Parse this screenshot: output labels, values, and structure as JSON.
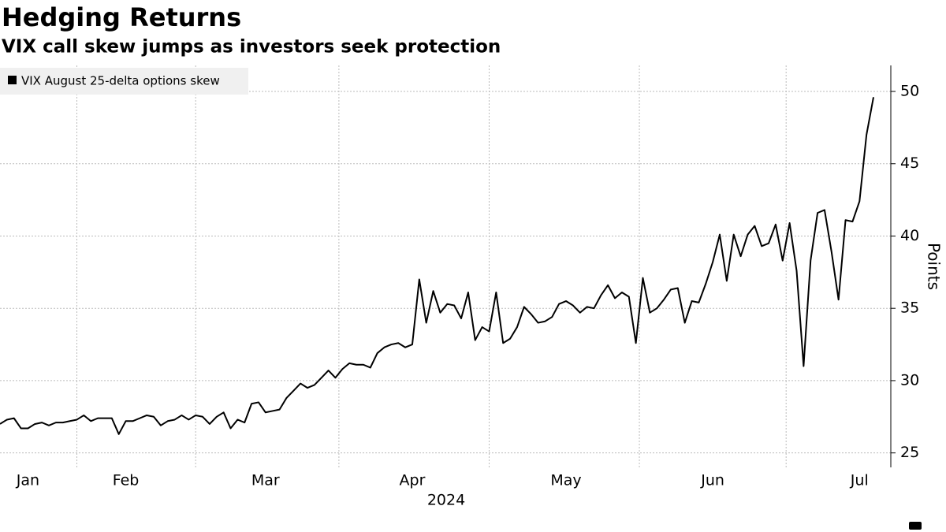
{
  "chart_data": {
    "type": "line",
    "title": "Hedging Returns",
    "subtitle": "VIX call skew jumps as investors seek protection",
    "ylabel": "Points",
    "xlabel": "2024",
    "categories": [
      null,
      null,
      null,
      null,
      "Jan",
      null,
      null,
      null,
      null,
      null,
      null,
      null,
      null,
      null,
      null,
      null,
      null,
      null,
      "Feb",
      null,
      null,
      null,
      null,
      null,
      null,
      null,
      null,
      null,
      null,
      null,
      null,
      null,
      null,
      null,
      null,
      null,
      null,
      null,
      "Mar",
      null,
      null,
      null,
      null,
      null,
      null,
      null,
      null,
      null,
      null,
      null,
      null,
      null,
      null,
      null,
      null,
      null,
      null,
      null,
      null,
      "Apr",
      null,
      null,
      null,
      null,
      null,
      null,
      null,
      null,
      null,
      null,
      null,
      null,
      null,
      null,
      null,
      null,
      null,
      null,
      null,
      null,
      null,
      "May",
      null,
      null,
      null,
      null,
      null,
      null,
      null,
      null,
      null,
      null,
      null,
      null,
      null,
      null,
      null,
      null,
      null,
      null,
      null,
      null,
      "Jun",
      null,
      null,
      null,
      null,
      null,
      null,
      null,
      null,
      null,
      null,
      null,
      null,
      null,
      null,
      null,
      null,
      null,
      null,
      null,
      null,
      "Jul",
      null,
      null
    ],
    "series": [
      {
        "name": "VIX August 25-delta options skew",
        "color": "#000000",
        "values": [
          27.0,
          27.3,
          27.4,
          26.7,
          26.7,
          27.0,
          27.1,
          26.9,
          27.1,
          27.1,
          27.2,
          27.3,
          27.6,
          27.2,
          27.4,
          27.4,
          27.4,
          26.3,
          27.2,
          27.2,
          27.4,
          27.6,
          27.5,
          26.9,
          27.2,
          27.3,
          27.6,
          27.3,
          27.6,
          27.5,
          27.0,
          27.5,
          27.8,
          26.7,
          27.3,
          27.1,
          28.4,
          28.5,
          27.8,
          27.9,
          28.0,
          28.8,
          29.3,
          29.8,
          29.5,
          29.7,
          30.2,
          30.7,
          30.2,
          30.8,
          31.2,
          31.1,
          31.1,
          30.9,
          31.9,
          32.3,
          32.5,
          32.6,
          32.3,
          32.5,
          37.0,
          34.0,
          36.2,
          34.7,
          35.3,
          35.2,
          34.3,
          36.1,
          32.8,
          33.7,
          33.4,
          36.1,
          32.6,
          32.9,
          33.7,
          35.1,
          34.6,
          34.0,
          34.1,
          34.4,
          35.3,
          35.5,
          35.2,
          34.7,
          35.1,
          35.0,
          35.9,
          36.6,
          35.7,
          36.1,
          35.8,
          32.6,
          37.1,
          34.7,
          35.0,
          35.6,
          36.3,
          36.4,
          34.0,
          35.5,
          35.4,
          36.7,
          38.2,
          40.1,
          36.9,
          40.1,
          38.6,
          40.1,
          40.7,
          39.3,
          39.5,
          40.8,
          38.3,
          40.9,
          37.6,
          31.0,
          38.3,
          41.6,
          41.8,
          38.9,
          35.6,
          41.1,
          41.0,
          42.4,
          47.0,
          49.6
        ]
      }
    ],
    "ylim": [
      24,
      51.8
    ],
    "yticks": [
      25,
      30,
      35,
      40,
      45,
      50
    ],
    "grid": true,
    "legend": "top-left"
  }
}
